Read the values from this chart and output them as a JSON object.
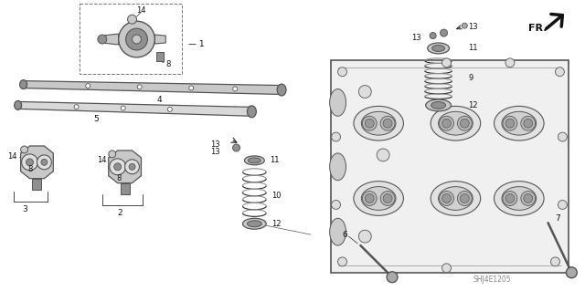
{
  "background_color": "#ffffff",
  "watermark": "SHJ4E1205",
  "figsize": [
    6.4,
    3.19
  ],
  "dpi": 100,
  "line_color": "#2a2a2a",
  "gray_light": "#c8c8c8",
  "gray_mid": "#909090",
  "gray_dark": "#555555"
}
